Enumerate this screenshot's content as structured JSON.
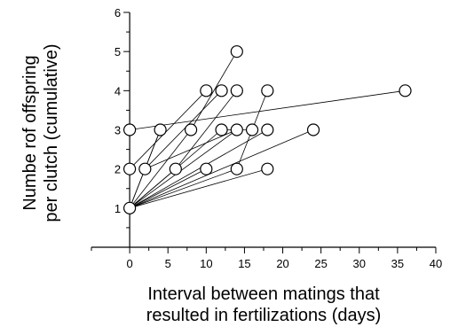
{
  "chart_data": {
    "type": "scatter",
    "title": "",
    "xlabel_lines": [
      "Interval between matings that",
      "resulted in fertilizations (days)"
    ],
    "ylabel_lines": [
      "Numbe rof offspring",
      "per clutch (cumulative)"
    ],
    "xlim": [
      -5,
      40
    ],
    "ylim": [
      0,
      6
    ],
    "x_ticks_labeled": [
      0,
      5,
      10,
      15,
      20,
      25,
      30,
      35,
      40
    ],
    "x_ticks_minor": [
      -5,
      2.5,
      7.5,
      12.5,
      17.5,
      22.5,
      27.5,
      32.5,
      37.5
    ],
    "y_ticks_labeled": [
      1,
      2,
      3,
      4,
      5,
      6
    ],
    "y_ticks_minor": [
      0.5,
      1.5,
      2.5,
      3.5,
      4.5,
      5.5
    ],
    "grid": false,
    "legend": "none",
    "points": [
      {
        "x": 0,
        "y": 1
      },
      {
        "x": 0,
        "y": 2
      },
      {
        "x": 0,
        "y": 3
      },
      {
        "x": 2,
        "y": 2
      },
      {
        "x": 4,
        "y": 3
      },
      {
        "x": 6,
        "y": 2
      },
      {
        "x": 8,
        "y": 3
      },
      {
        "x": 10,
        "y": 2
      },
      {
        "x": 10,
        "y": 4
      },
      {
        "x": 12,
        "y": 3
      },
      {
        "x": 12,
        "y": 4
      },
      {
        "x": 14,
        "y": 2
      },
      {
        "x": 14,
        "y": 3
      },
      {
        "x": 14,
        "y": 4
      },
      {
        "x": 14,
        "y": 5
      },
      {
        "x": 16,
        "y": 3
      },
      {
        "x": 18,
        "y": 2
      },
      {
        "x": 18,
        "y": 3
      },
      {
        "x": 18,
        "y": 4
      },
      {
        "x": 24,
        "y": 3
      },
      {
        "x": 36,
        "y": 4
      }
    ],
    "connections": [
      [
        [
          0,
          1
        ],
        [
          2,
          2
        ]
      ],
      [
        [
          0,
          1
        ],
        [
          4,
          3
        ]
      ],
      [
        [
          0,
          1
        ],
        [
          6,
          2
        ]
      ],
      [
        [
          0,
          1
        ],
        [
          8,
          3
        ]
      ],
      [
        [
          0,
          1
        ],
        [
          10,
          2
        ]
      ],
      [
        [
          0,
          1
        ],
        [
          12,
          3
        ]
      ],
      [
        [
          0,
          1
        ],
        [
          14,
          2
        ]
      ],
      [
        [
          0,
          1
        ],
        [
          14,
          3
        ]
      ],
      [
        [
          0,
          1
        ],
        [
          18,
          2
        ]
      ],
      [
        [
          0,
          1
        ],
        [
          18,
          3
        ]
      ],
      [
        [
          0,
          1
        ],
        [
          24,
          3
        ]
      ],
      [
        [
          0,
          2
        ],
        [
          10,
          4
        ]
      ],
      [
        [
          0,
          3
        ],
        [
          36,
          4
        ]
      ],
      [
        [
          2,
          2
        ],
        [
          4,
          3
        ]
      ],
      [
        [
          2,
          2
        ],
        [
          12,
          4
        ]
      ],
      [
        [
          2,
          2
        ],
        [
          14,
          3
        ]
      ],
      [
        [
          6,
          2
        ],
        [
          14,
          4
        ]
      ],
      [
        [
          8,
          3
        ],
        [
          14,
          5
        ]
      ],
      [
        [
          14,
          2
        ],
        [
          18,
          4
        ]
      ],
      [
        [
          12,
          3
        ],
        [
          16,
          3
        ]
      ]
    ]
  }
}
